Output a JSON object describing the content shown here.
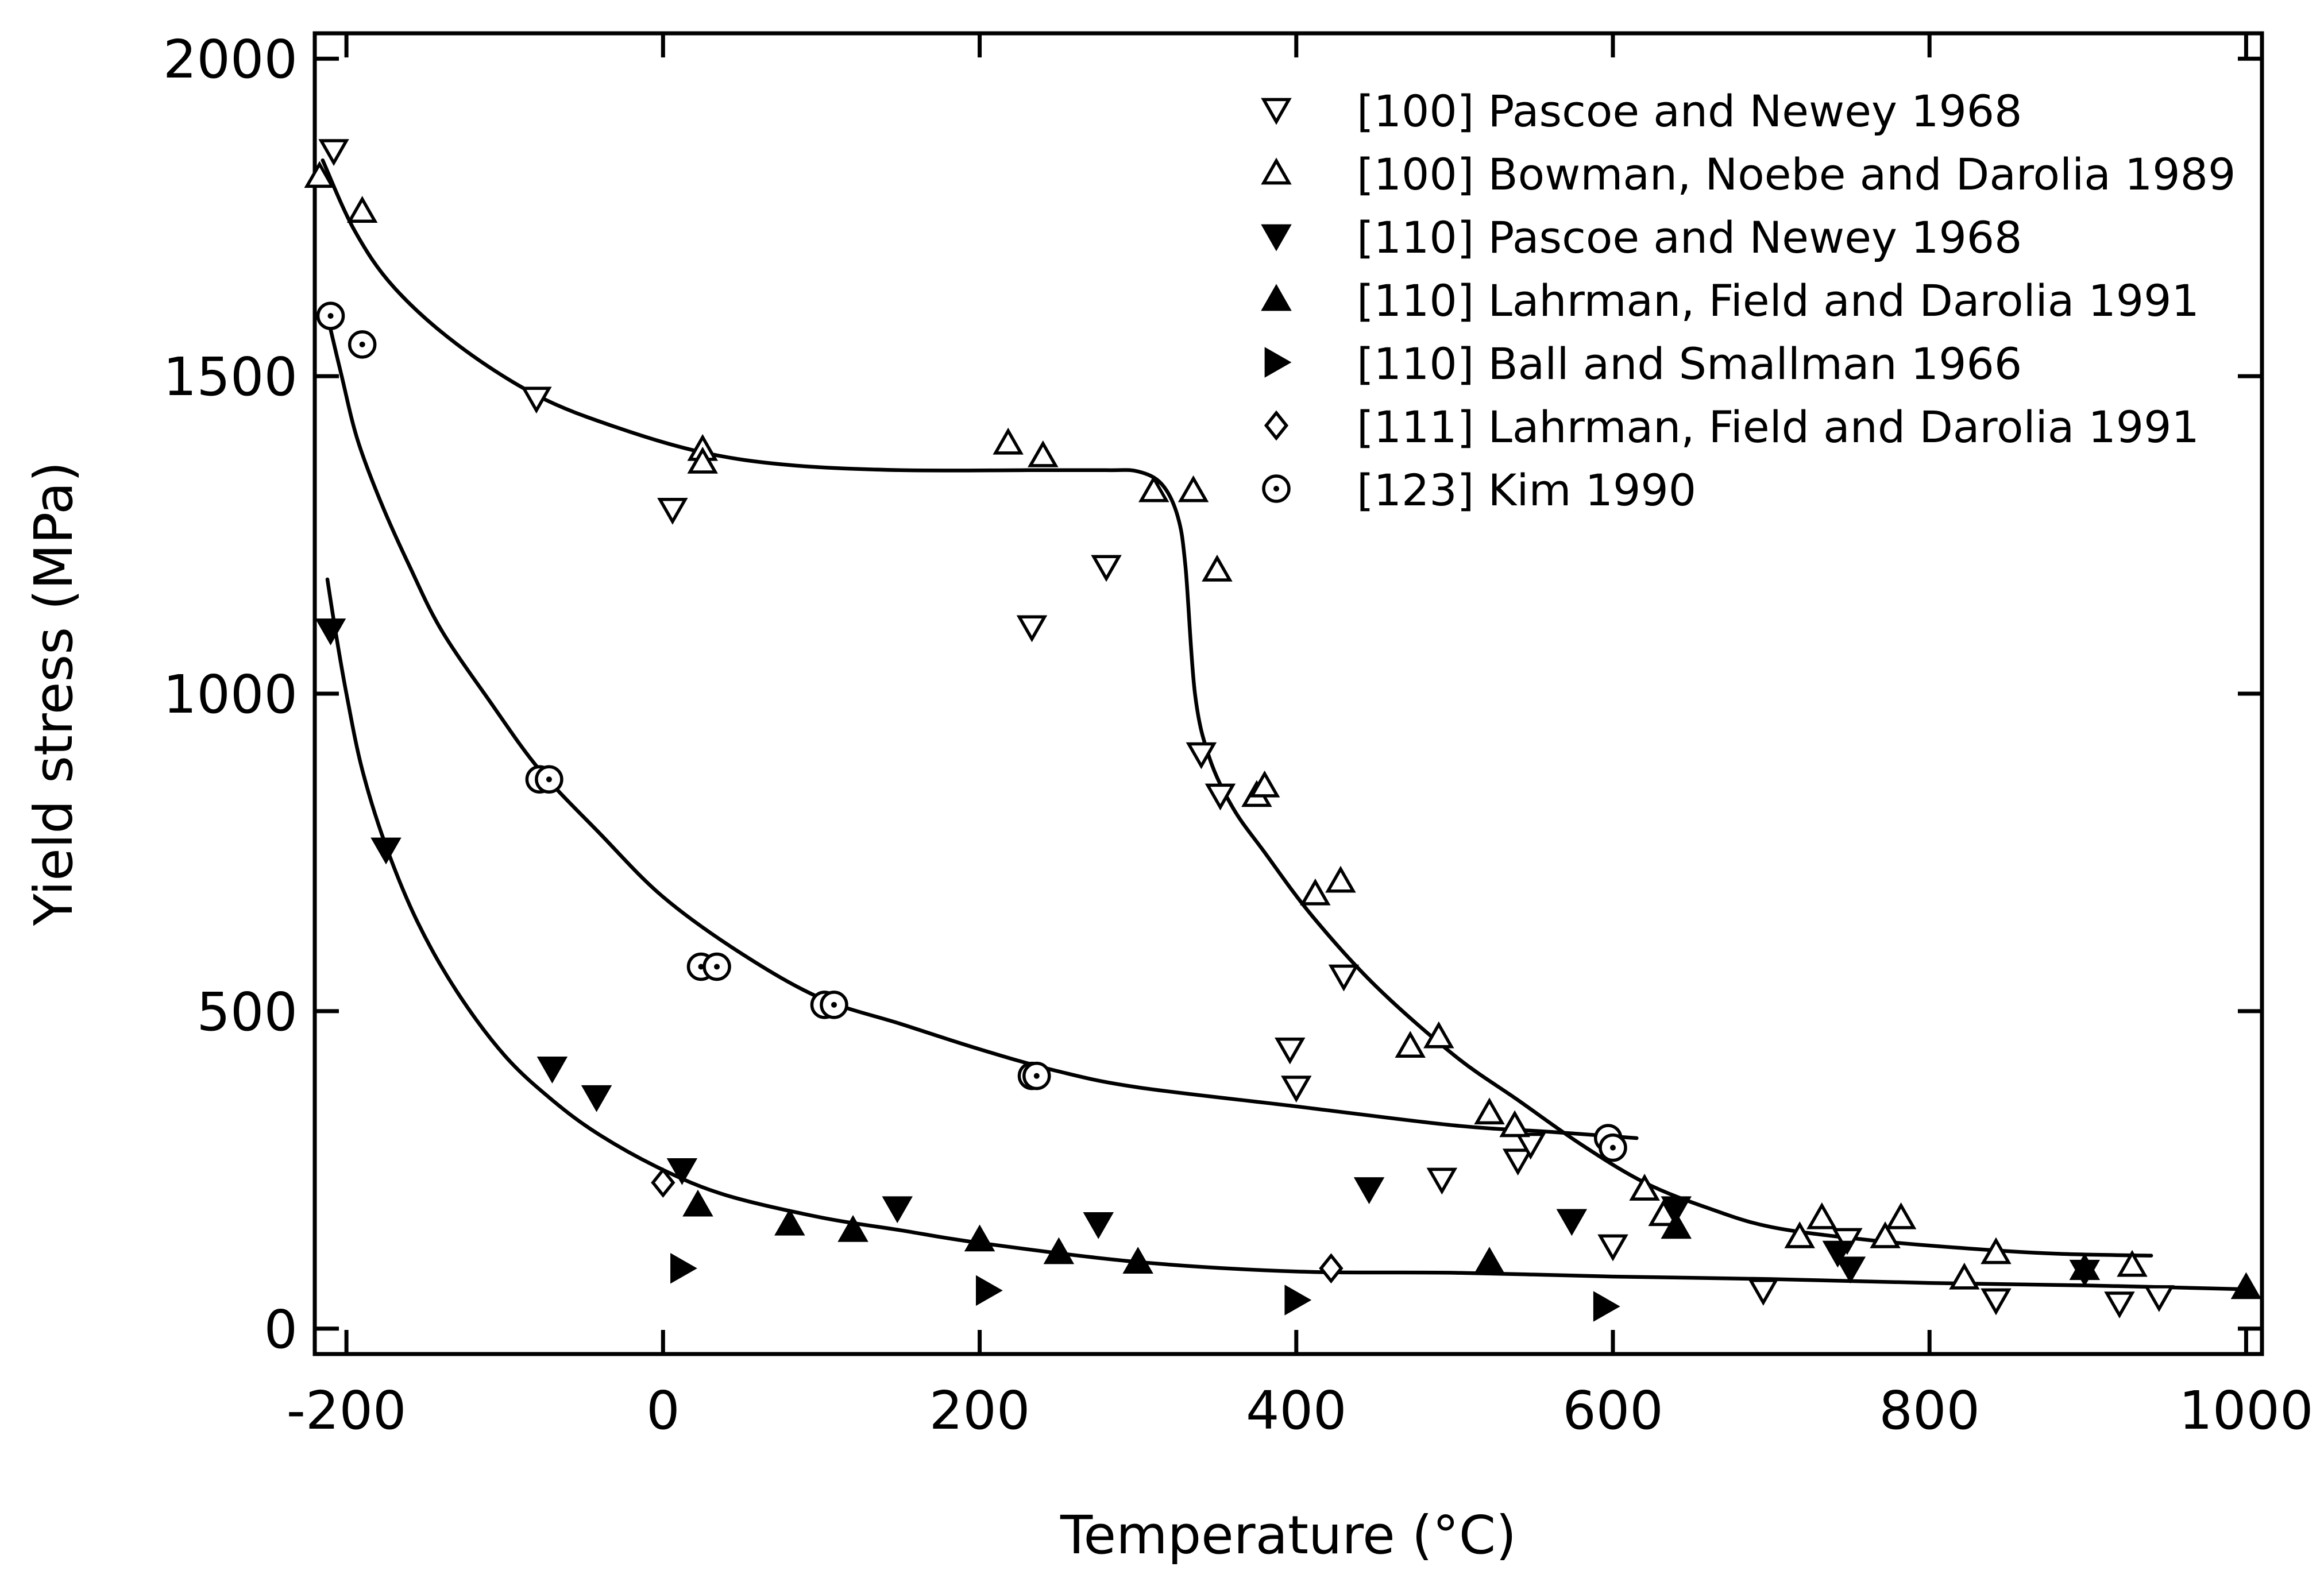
{
  "chart_data": {
    "type": "scatter",
    "xlabel": "Temperature (°C)",
    "ylabel": "Yield stress (MPa)",
    "xlim": [
      -220,
      1010
    ],
    "ylim": [
      -40,
      2040
    ],
    "xticks": [
      -200,
      0,
      200,
      400,
      600,
      800,
      1000
    ],
    "yticks": [
      0,
      500,
      1000,
      1500,
      2000
    ],
    "xtick_labels": [
      "-200",
      "0",
      "200",
      "400",
      "600",
      "800",
      "1000"
    ],
    "ytick_labels": [
      "0",
      "500",
      "1000",
      "1500",
      "2000"
    ],
    "legend_position": "top-right",
    "grid": false,
    "series": [
      {
        "name": "[100] Pascoe and Newey 1968",
        "marker": "triangle-down-open",
        "points": [
          [
            -208,
            1855
          ],
          [
            -80,
            1465
          ],
          [
            6,
            1290
          ],
          [
            233,
            1105
          ],
          [
            280,
            1200
          ],
          [
            340,
            905
          ],
          [
            352,
            840
          ],
          [
            396,
            440
          ],
          [
            400,
            380
          ],
          [
            430,
            555
          ],
          [
            492,
            235
          ],
          [
            540,
            265
          ],
          [
            548,
            290
          ],
          [
            600,
            130
          ],
          [
            695,
            60
          ],
          [
            748,
            140
          ],
          [
            842,
            45
          ],
          [
            920,
            40
          ],
          [
            945,
            50
          ]
        ]
      },
      {
        "name": "[100] Bowman, Noebe and Darolia 1989",
        "marker": "triangle-up-open",
        "points": [
          [
            -217,
            1815
          ],
          [
            -190,
            1760
          ],
          [
            25,
            1385
          ],
          [
            25,
            1365
          ],
          [
            218,
            1395
          ],
          [
            240,
            1375
          ],
          [
            310,
            1320
          ],
          [
            335,
            1320
          ],
          [
            350,
            1195
          ],
          [
            375,
            840
          ],
          [
            380,
            855
          ],
          [
            412,
            685
          ],
          [
            428,
            705
          ],
          [
            472,
            445
          ],
          [
            490,
            460
          ],
          [
            522,
            340
          ],
          [
            538,
            320
          ],
          [
            620,
            220
          ],
          [
            632,
            180
          ],
          [
            718,
            145
          ],
          [
            732,
            175
          ],
          [
            772,
            145
          ],
          [
            782,
            175
          ],
          [
            822,
            80
          ],
          [
            842,
            120
          ],
          [
            928,
            100
          ]
        ]
      },
      {
        "name": "[110] Pascoe and Newey 1968",
        "marker": "triangle-down-filled",
        "points": [
          [
            -210,
            1100
          ],
          [
            -175,
            755
          ],
          [
            -70,
            410
          ],
          [
            -42,
            365
          ],
          [
            12,
            250
          ],
          [
            148,
            190
          ],
          [
            275,
            165
          ],
          [
            446,
            220
          ],
          [
            574,
            170
          ],
          [
            640,
            190
          ],
          [
            742,
            120
          ],
          [
            750,
            95
          ],
          [
            898,
            90
          ]
        ]
      },
      {
        "name": "[110] Lahrman, Field and Darolia 1991",
        "marker": "triangle-up-filled",
        "points": [
          [
            22,
            195
          ],
          [
            80,
            165
          ],
          [
            120,
            155
          ],
          [
            200,
            140
          ],
          [
            250,
            120
          ],
          [
            300,
            105
          ],
          [
            522,
            105
          ],
          [
            640,
            160
          ],
          [
            898,
            95
          ],
          [
            1000,
            65
          ]
        ]
      },
      {
        "name": "[110] Ball and Smallman 1966",
        "marker": "triangle-right-filled",
        "points": [
          [
            12,
            95
          ],
          [
            205,
            60
          ],
          [
            400,
            45
          ],
          [
            595,
            35
          ]
        ]
      },
      {
        "name": "[111] Lahrman, Field and Darolia 1991",
        "marker": "diamond-open",
        "points": [
          [
            0,
            230
          ],
          [
            422,
            95
          ]
        ]
      },
      {
        "name": "[123] Kim 1990",
        "marker": "circle-dot",
        "points": [
          [
            -210,
            1595
          ],
          [
            -190,
            1550
          ],
          [
            -78,
            865
          ],
          [
            -72,
            865
          ],
          [
            24,
            570
          ],
          [
            34,
            570
          ],
          [
            102,
            510
          ],
          [
            108,
            510
          ],
          [
            233,
            398
          ],
          [
            236,
            398
          ],
          [
            597,
            300
          ],
          [
            600,
            285
          ]
        ]
      }
    ],
    "fit_curves": [
      {
        "points": [
          [
            -215,
            1840
          ],
          [
            -195,
            1730
          ],
          [
            -170,
            1640
          ],
          [
            -130,
            1550
          ],
          [
            -80,
            1470
          ],
          [
            -30,
            1420
          ],
          [
            25,
            1380
          ],
          [
            80,
            1360
          ],
          [
            150,
            1352
          ],
          [
            230,
            1352
          ],
          [
            280,
            1352
          ],
          [
            300,
            1350
          ],
          [
            315,
            1330
          ],
          [
            325,
            1280
          ],
          [
            330,
            1200
          ],
          [
            336,
            1000
          ],
          [
            345,
            900
          ],
          [
            360,
            820
          ],
          [
            380,
            750
          ],
          [
            410,
            650
          ],
          [
            450,
            540
          ],
          [
            500,
            430
          ],
          [
            540,
            360
          ],
          [
            580,
            290
          ],
          [
            620,
            230
          ],
          [
            660,
            190
          ],
          [
            700,
            160
          ],
          [
            760,
            140
          ],
          [
            820,
            127
          ],
          [
            880,
            118
          ],
          [
            940,
            115
          ]
        ]
      },
      {
        "points": [
          [
            -212,
            1595
          ],
          [
            -203,
            1500
          ],
          [
            -193,
            1400
          ],
          [
            -178,
            1300
          ],
          [
            -160,
            1200
          ],
          [
            -140,
            1100
          ],
          [
            -110,
            990
          ],
          [
            -78,
            880
          ],
          [
            -40,
            780
          ],
          [
            0,
            680
          ],
          [
            50,
            590
          ],
          [
            100,
            520
          ],
          [
            150,
            480
          ],
          [
            200,
            440
          ],
          [
            250,
            405
          ],
          [
            300,
            380
          ],
          [
            400,
            350
          ],
          [
            500,
            320
          ],
          [
            560,
            310
          ],
          [
            615,
            300
          ]
        ]
      },
      {
        "points": [
          [
            -212,
            1180
          ],
          [
            -207,
            1100
          ],
          [
            -200,
            1000
          ],
          [
            -190,
            880
          ],
          [
            -175,
            760
          ],
          [
            -155,
            640
          ],
          [
            -130,
            530
          ],
          [
            -100,
            430
          ],
          [
            -70,
            360
          ],
          [
            -40,
            305
          ],
          [
            0,
            250
          ],
          [
            40,
            210
          ],
          [
            100,
            175
          ],
          [
            150,
            155
          ],
          [
            200,
            135
          ],
          [
            300,
            105
          ],
          [
            400,
            90
          ],
          [
            500,
            88
          ],
          [
            600,
            82
          ],
          [
            700,
            78
          ],
          [
            800,
            72
          ],
          [
            900,
            68
          ],
          [
            1000,
            62
          ]
        ]
      }
    ]
  }
}
